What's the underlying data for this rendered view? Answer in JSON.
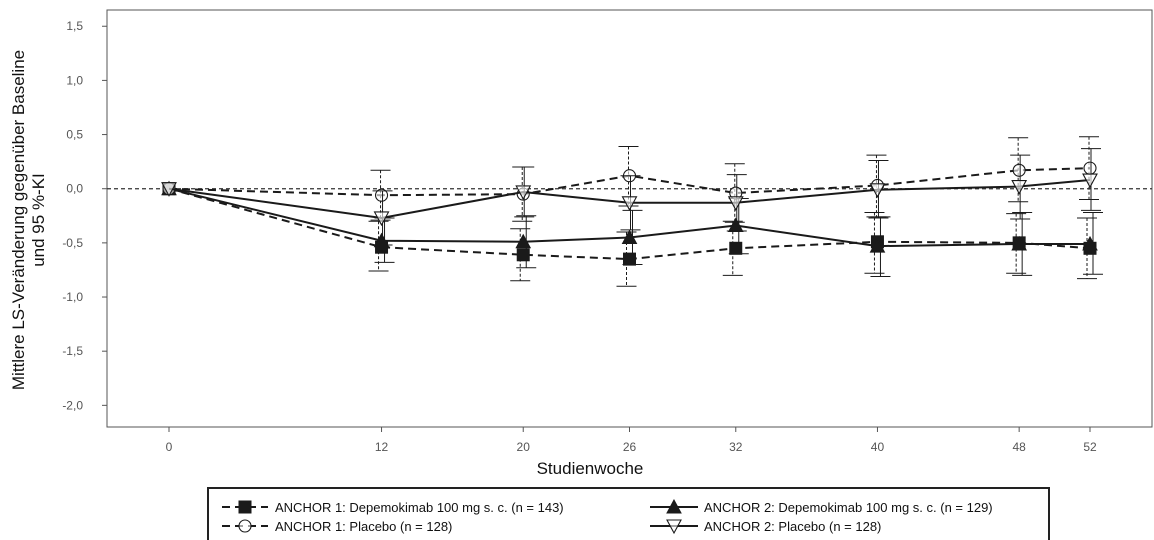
{
  "chart_data": {
    "type": "line",
    "title": "",
    "xlabel": "Studienwoche",
    "ylabel_lines": [
      "Mittlere LS-Veränderung gegenüber Baseline",
      "und 95 %-KI"
    ],
    "x_ticks": [
      0,
      12,
      20,
      26,
      32,
      40,
      48,
      52
    ],
    "x_tick_labels": [
      "0",
      "12",
      "20",
      "26",
      "32",
      "40",
      "48",
      "52"
    ],
    "y_ticks": [
      1.5,
      1.0,
      0.5,
      0.0,
      -0.5,
      -1.0,
      -1.5,
      -2.0
    ],
    "y_tick_labels": [
      "1,5",
      "1,0",
      "0,5",
      "0,0",
      "-0,5",
      "-1,0",
      "-1,5",
      "-2,0"
    ],
    "ylim": [
      -2.2,
      1.65
    ],
    "reference_line": 0.0,
    "legend_position": "bottom",
    "series": [
      {
        "name": "ANCHOR 1: Depemokimab 100 mg s. c. (n = 143)",
        "marker": "square-filled",
        "line": "dashed",
        "x": [
          0,
          12,
          20,
          26,
          32,
          40,
          48,
          52
        ],
        "y": [
          0.0,
          -0.54,
          -0.61,
          -0.65,
          -0.55,
          -0.49,
          -0.5,
          -0.55
        ],
        "ci_low": [
          0.0,
          -0.76,
          -0.85,
          -0.9,
          -0.8,
          -0.78,
          -0.78,
          -0.83
        ],
        "ci_high": [
          0.0,
          -0.3,
          -0.37,
          -0.4,
          -0.3,
          -0.22,
          -0.23,
          -0.27
        ]
      },
      {
        "name": "ANCHOR 2: Depemokimab 100 mg s. c. (n = 129)",
        "marker": "triangle-filled",
        "line": "solid",
        "x": [
          0,
          12,
          20,
          26,
          32,
          40,
          48,
          52
        ],
        "y": [
          0.0,
          -0.48,
          -0.49,
          -0.45,
          -0.34,
          -0.53,
          -0.51,
          -0.51
        ],
        "ci_low": [
          0.0,
          -0.68,
          -0.73,
          -0.7,
          -0.6,
          -0.81,
          -0.8,
          -0.79
        ],
        "ci_high": [
          0.0,
          -0.27,
          -0.25,
          -0.2,
          -0.09,
          -0.26,
          -0.22,
          -0.22
        ]
      },
      {
        "name": "ANCHOR 1: Placebo (n = 128)",
        "marker": "circle-open",
        "line": "dashed",
        "x": [
          0,
          12,
          20,
          26,
          32,
          40,
          48,
          52
        ],
        "y": [
          0.0,
          -0.06,
          -0.05,
          0.12,
          -0.04,
          0.03,
          0.17,
          0.19
        ],
        "ci_low": [
          0.0,
          -0.29,
          -0.3,
          -0.16,
          -0.31,
          -0.26,
          -0.12,
          -0.1
        ],
        "ci_high": [
          0.0,
          0.17,
          0.2,
          0.39,
          0.23,
          0.31,
          0.47,
          0.48
        ]
      },
      {
        "name": "ANCHOR 2: Placebo (n = 128)",
        "marker": "triangle-open-down",
        "line": "solid",
        "x": [
          0,
          12,
          20,
          26,
          32,
          40,
          48,
          52
        ],
        "y": [
          0.0,
          -0.27,
          -0.03,
          -0.13,
          -0.13,
          -0.01,
          0.02,
          0.08
        ],
        "ci_low": [
          0.0,
          -0.52,
          -0.26,
          -0.38,
          -0.39,
          -0.27,
          -0.28,
          -0.2
        ],
        "ci_high": [
          0.0,
          -0.02,
          0.2,
          0.12,
          0.13,
          0.26,
          0.31,
          0.37
        ]
      }
    ]
  },
  "colors": {
    "series": "#1a1a1a",
    "axis": "#555555",
    "reference": "#333333"
  }
}
